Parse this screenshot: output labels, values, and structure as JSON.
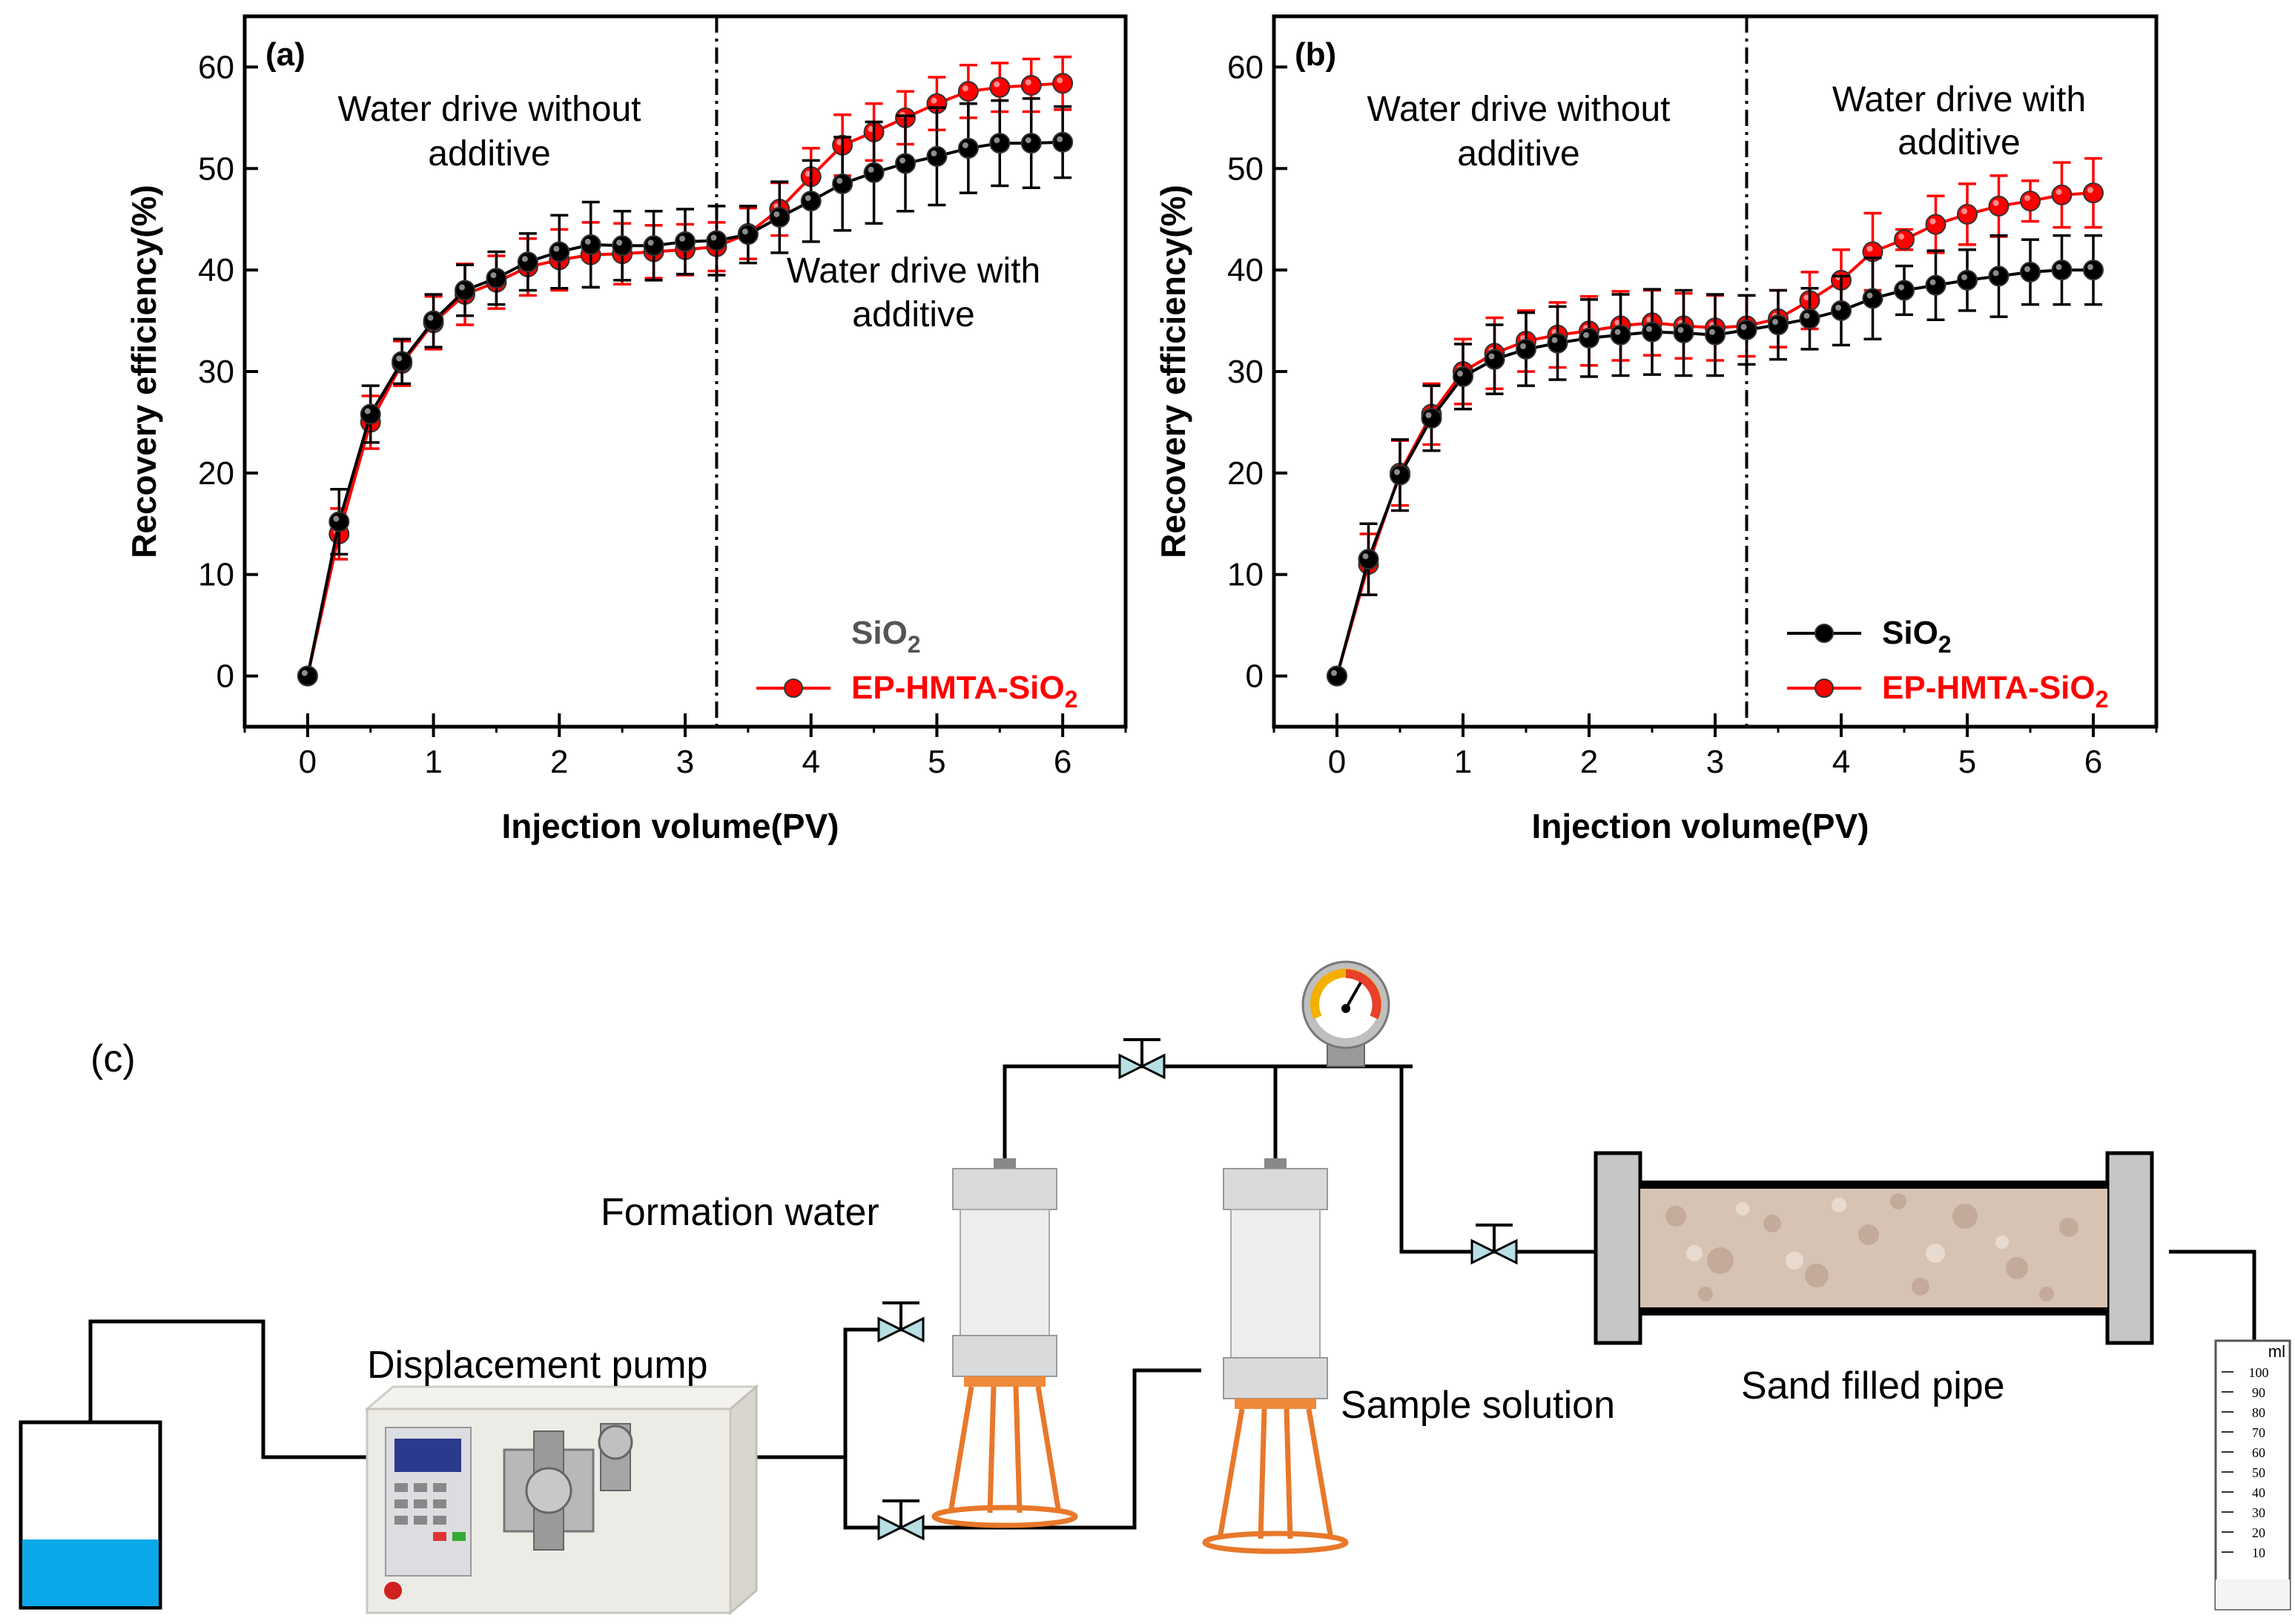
{
  "chart_data": [
    {
      "panel_label": "(a)",
      "type": "line",
      "xlabel": "Injection volume(PV)",
      "ylabel": "Recovery efficiency(%)",
      "xlim": [
        -0.5,
        6.5
      ],
      "ylim": [
        -5,
        65
      ],
      "xticks": [
        "0",
        "1",
        "2",
        "3",
        "4",
        "5",
        "6"
      ],
      "yticks": [
        "0",
        "10",
        "20",
        "30",
        "40",
        "50",
        "60"
      ],
      "divider_x": 3.25,
      "annotations": {
        "left_line1": "Water drive without",
        "left_line2": "additive",
        "right_line1": "Water drive with",
        "right_line2": "additive"
      },
      "x": [
        0,
        0.25,
        0.5,
        0.75,
        1,
        1.25,
        1.5,
        1.75,
        2,
        2.25,
        2.5,
        2.75,
        3,
        3.25,
        3.5,
        3.75,
        4,
        4.25,
        4.5,
        4.75,
        5,
        5.25,
        5.5,
        5.75,
        6
      ],
      "series": [
        {
          "name": "SiO2",
          "legend_main": "SiO",
          "legend_sub": "2",
          "color": "#000000",
          "show_legend_line": false,
          "legend_color": "#555555",
          "values": [
            0,
            15.2,
            25.8,
            31.0,
            35.0,
            38.0,
            39.2,
            40.8,
            41.8,
            42.5,
            42.4,
            42.4,
            42.8,
            42.9,
            43.5,
            45.2,
            46.8,
            48.5,
            49.6,
            50.5,
            51.2,
            52.0,
            52.5,
            52.5,
            52.6
          ],
          "errors": [
            0,
            3.2,
            2.8,
            2.2,
            2.6,
            2.5,
            2.6,
            2.8,
            3.6,
            4.2,
            3.4,
            3.4,
            3.2,
            3.4,
            2.8,
            3.5,
            4.0,
            4.6,
            5.0,
            4.7,
            4.8,
            4.4,
            4.2,
            4.4,
            3.5
          ]
        },
        {
          "name": "EP-HMTA-SiO2",
          "legend_main": "EP-HMTA-SiO",
          "legend_sub": "2",
          "color": "#ff0000",
          "show_legend_line": true,
          "legend_color": "#ff0000",
          "values": [
            0,
            14.0,
            25.0,
            30.8,
            34.8,
            37.6,
            38.8,
            40.3,
            41.0,
            41.5,
            41.6,
            41.8,
            42.0,
            42.3,
            43.6,
            46.0,
            49.2,
            52.3,
            53.6,
            55.0,
            56.4,
            57.6,
            58.0,
            58.2,
            58.4
          ],
          "errors": [
            0,
            2.5,
            2.6,
            2.2,
            2.6,
            3.0,
            2.6,
            2.8,
            3.0,
            3.2,
            3.0,
            2.6,
            2.5,
            2.4,
            2.5,
            2.6,
            2.8,
            3.0,
            2.8,
            2.6,
            2.6,
            2.6,
            2.4,
            2.6,
            2.6
          ]
        }
      ]
    },
    {
      "panel_label": "(b)",
      "type": "line",
      "xlabel": "Injection volume(PV)",
      "ylabel": "Recovery efficiency(%)",
      "xlim": [
        -0.5,
        6.5
      ],
      "ylim": [
        -5,
        65
      ],
      "xticks": [
        "0",
        "1",
        "2",
        "3",
        "4",
        "5",
        "6"
      ],
      "yticks": [
        "0",
        "10",
        "20",
        "30",
        "40",
        "50",
        "60"
      ],
      "divider_x": 3.25,
      "annotations": {
        "left_line1": "Water drive without",
        "left_line2": "additive",
        "right_line1": "Water drive with",
        "right_line2": "additive"
      },
      "x": [
        0,
        0.25,
        0.5,
        0.75,
        1,
        1.25,
        1.5,
        1.75,
        2,
        2.25,
        2.5,
        2.75,
        3,
        3.25,
        3.5,
        3.75,
        4,
        4.25,
        4.5,
        4.75,
        5,
        5.25,
        5.5,
        5.75,
        6
      ],
      "series": [
        {
          "name": "SiO2",
          "legend_main": "SiO",
          "legend_sub": "2",
          "color": "#000000",
          "show_legend_line": true,
          "legend_color": "#000000",
          "values": [
            0,
            11.5,
            19.8,
            25.4,
            29.5,
            31.2,
            32.2,
            32.8,
            33.3,
            33.6,
            33.9,
            33.8,
            33.6,
            34.1,
            34.6,
            35.2,
            36.0,
            37.2,
            38.0,
            38.5,
            39.0,
            39.4,
            39.8,
            40.0,
            40.0
          ],
          "errors": [
            0,
            3.5,
            3.5,
            3.2,
            3.2,
            3.4,
            3.6,
            3.6,
            3.8,
            4.0,
            4.2,
            4.2,
            4.0,
            3.4,
            3.4,
            3.0,
            3.4,
            4.0,
            2.4,
            3.4,
            3.0,
            4.0,
            3.2,
            3.4,
            3.4
          ]
        },
        {
          "name": "EP-HMTA-SiO2",
          "legend_main": "EP-HMTA-SiO",
          "legend_sub": "2",
          "color": "#ff0000",
          "show_legend_line": true,
          "legend_color": "#ff0000",
          "values": [
            0,
            11.0,
            20.0,
            25.8,
            30.0,
            31.8,
            33.0,
            33.6,
            34.0,
            34.5,
            34.8,
            34.5,
            34.3,
            34.5,
            35.2,
            37.0,
            39.0,
            41.8,
            43.0,
            44.5,
            45.5,
            46.3,
            46.8,
            47.4,
            47.6
          ],
          "errors": [
            0,
            3.0,
            3.2,
            3.0,
            3.2,
            3.5,
            3.0,
            3.2,
            3.4,
            3.4,
            3.2,
            3.2,
            3.2,
            3.0,
            2.8,
            2.8,
            3.0,
            3.8,
            1.0,
            2.8,
            3.0,
            3.0,
            2.0,
            3.2,
            3.4
          ]
        }
      ]
    }
  ],
  "schematic": {
    "panel_label": "(c)",
    "labels": {
      "formation_water": "Formation water",
      "displacement_pump": "Displacement pump",
      "sample_solution": "Sample solution",
      "sand_filled_pipe": "Sand filled pipe",
      "cylinder_unit": "ml",
      "cylinder_scale": [
        "100",
        "90",
        "80",
        "70",
        "60",
        "50",
        "40",
        "30",
        "20",
        "10"
      ]
    }
  }
}
